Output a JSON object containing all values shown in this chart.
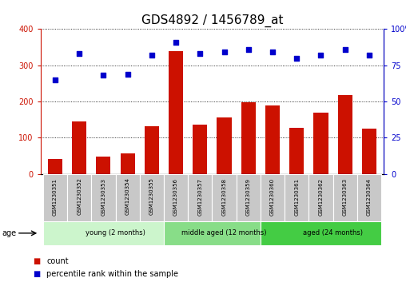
{
  "title": "GDS4892 / 1456789_at",
  "samples": [
    "GSM1230351",
    "GSM1230352",
    "GSM1230353",
    "GSM1230354",
    "GSM1230355",
    "GSM1230356",
    "GSM1230357",
    "GSM1230358",
    "GSM1230359",
    "GSM1230360",
    "GSM1230361",
    "GSM1230362",
    "GSM1230363",
    "GSM1230364"
  ],
  "counts": [
    42,
    145,
    48,
    57,
    132,
    340,
    137,
    155,
    198,
    190,
    128,
    170,
    218,
    125
  ],
  "percentile_ranks": [
    65,
    83,
    68,
    69,
    82,
    91,
    83,
    84,
    86,
    84,
    80,
    82,
    86,
    82
  ],
  "groups": [
    {
      "label": "young (2 months)",
      "start": 0,
      "end": 5,
      "color": "#ccf5cc"
    },
    {
      "label": "middle aged (12 months)",
      "start": 5,
      "end": 9,
      "color": "#88dd88"
    },
    {
      "label": "aged (24 months)",
      "start": 9,
      "end": 14,
      "color": "#44cc44"
    }
  ],
  "bar_color": "#cc1100",
  "scatter_color": "#0000cc",
  "ylim_left": [
    0,
    400
  ],
  "ylim_right": [
    0,
    100
  ],
  "yticks_left": [
    0,
    100,
    200,
    300,
    400
  ],
  "yticks_right": [
    0,
    25,
    50,
    75,
    100
  ],
  "label_box_color": "#c8c8c8",
  "title_fontsize": 11,
  "tick_label_fontsize": 7,
  "sample_label_fontsize": 5,
  "group_label_fontsize": 6,
  "legend_fontsize": 7
}
